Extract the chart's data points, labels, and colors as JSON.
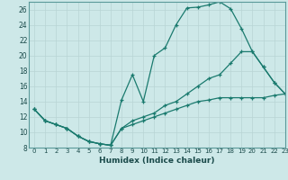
{
  "title": "",
  "xlabel": "Humidex (Indice chaleur)",
  "ylabel": "",
  "bg_color": "#cde8e8",
  "line_color": "#1a7a6e",
  "grid_color": "#b8d4d4",
  "xlim": [
    -0.5,
    23
  ],
  "ylim": [
    8,
    27
  ],
  "xticks": [
    0,
    1,
    2,
    3,
    4,
    5,
    6,
    7,
    8,
    9,
    10,
    11,
    12,
    13,
    14,
    15,
    16,
    17,
    18,
    19,
    20,
    21,
    22,
    23
  ],
  "yticks": [
    8,
    10,
    12,
    14,
    16,
    18,
    20,
    22,
    24,
    26
  ],
  "series1": [
    [
      0,
      13
    ],
    [
      1,
      11.5
    ],
    [
      2,
      11
    ],
    [
      3,
      10.5
    ],
    [
      4,
      9.5
    ],
    [
      5,
      8.8
    ],
    [
      6,
      8.5
    ],
    [
      7,
      8.3
    ],
    [
      8,
      14.2
    ],
    [
      9,
      17.5
    ],
    [
      10,
      14
    ],
    [
      11,
      20
    ],
    [
      12,
      21
    ],
    [
      13,
      24
    ],
    [
      14,
      26.2
    ],
    [
      15,
      26.3
    ],
    [
      16,
      26.6
    ],
    [
      17,
      27
    ],
    [
      18,
      26.1
    ],
    [
      19,
      23.5
    ],
    [
      20,
      20.5
    ],
    [
      21,
      18.5
    ],
    [
      22,
      16.5
    ],
    [
      23,
      15
    ]
  ],
  "series2": [
    [
      0,
      13
    ],
    [
      1,
      11.5
    ],
    [
      2,
      11
    ],
    [
      3,
      10.5
    ],
    [
      4,
      9.5
    ],
    [
      5,
      8.8
    ],
    [
      6,
      8.5
    ],
    [
      7,
      8.3
    ],
    [
      8,
      10.5
    ],
    [
      9,
      11.5
    ],
    [
      10,
      12
    ],
    [
      11,
      12.5
    ],
    [
      12,
      13.5
    ],
    [
      13,
      14
    ],
    [
      14,
      15
    ],
    [
      15,
      16
    ],
    [
      16,
      17
    ],
    [
      17,
      17.5
    ],
    [
      18,
      19
    ],
    [
      19,
      20.5
    ],
    [
      20,
      20.5
    ],
    [
      21,
      18.5
    ],
    [
      22,
      16.5
    ],
    [
      23,
      15
    ]
  ],
  "series3": [
    [
      0,
      13
    ],
    [
      1,
      11.5
    ],
    [
      2,
      11
    ],
    [
      3,
      10.5
    ],
    [
      4,
      9.5
    ],
    [
      5,
      8.8
    ],
    [
      6,
      8.5
    ],
    [
      7,
      8.3
    ],
    [
      8,
      10.5
    ],
    [
      9,
      11
    ],
    [
      10,
      11.5
    ],
    [
      11,
      12
    ],
    [
      12,
      12.5
    ],
    [
      13,
      13
    ],
    [
      14,
      13.5
    ],
    [
      15,
      14
    ],
    [
      16,
      14.2
    ],
    [
      17,
      14.5
    ],
    [
      18,
      14.5
    ],
    [
      19,
      14.5
    ],
    [
      20,
      14.5
    ],
    [
      21,
      14.5
    ],
    [
      22,
      14.8
    ],
    [
      23,
      15
    ]
  ]
}
